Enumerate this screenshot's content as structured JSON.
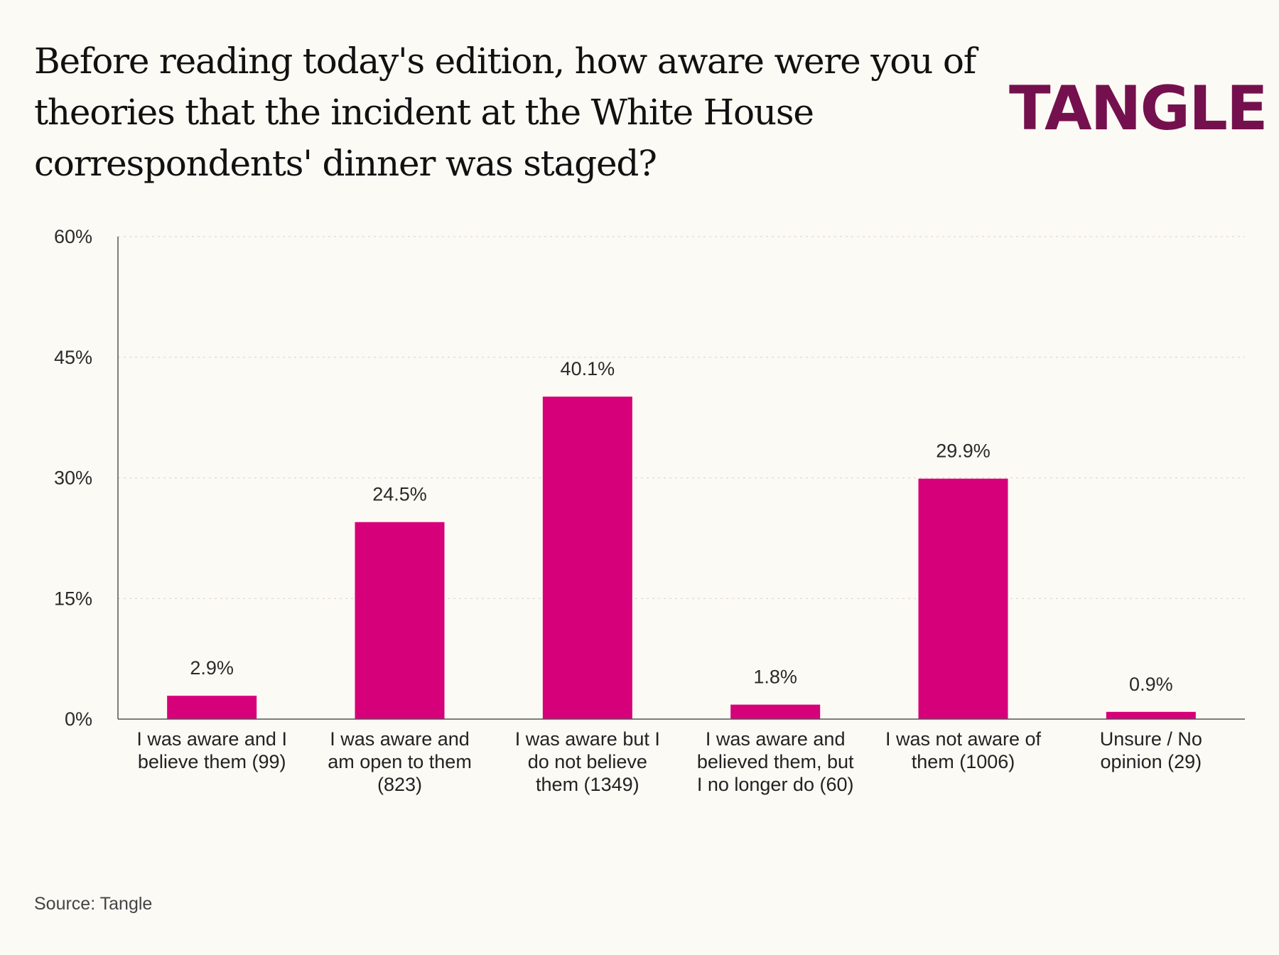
{
  "header": {
    "title": "Before reading today's edition, how aware were you of theories that the incident at the White House correspondents' dinner was staged?",
    "logo_text": "TANGLE"
  },
  "footer": {
    "source": "Source: Tangle"
  },
  "colors": {
    "bar": "#d6007a",
    "logo": "#75104e",
    "background": "#fcfaf4"
  },
  "chart_data": {
    "type": "bar",
    "title": "Before reading today's edition, how aware were you of theories that the incident at the White House correspondents' dinner was staged?",
    "categories": [
      [
        "I was aware and I",
        "believe them (99)"
      ],
      [
        "I was aware and",
        "am open to them",
        "(823)"
      ],
      [
        "I was aware but I",
        "do not believe",
        "them (1349)"
      ],
      [
        "I was aware and",
        "believed them, but",
        "I no longer do (60)"
      ],
      [
        "I was not aware of",
        "them (1006)"
      ],
      [
        "Unsure / No",
        "opinion (29)"
      ]
    ],
    "values": [
      2.9,
      24.5,
      40.1,
      1.8,
      29.9,
      0.9
    ],
    "value_labels": [
      "2.9%",
      "24.5%",
      "40.1%",
      "1.8%",
      "29.9%",
      "0.9%"
    ],
    "yticks": [
      0,
      15,
      30,
      45,
      60
    ],
    "ytick_labels": [
      "0%",
      "15%",
      "30%",
      "45%",
      "60%"
    ],
    "ylim": [
      0,
      60
    ],
    "grid": true,
    "legend": "none"
  }
}
